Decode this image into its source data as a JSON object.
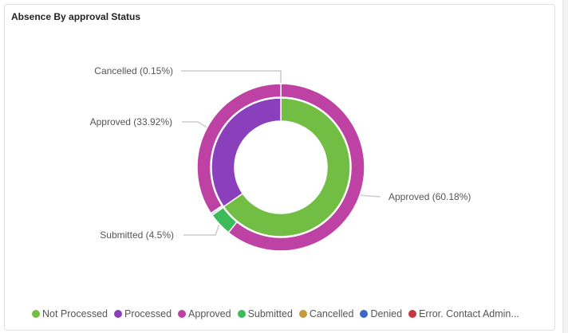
{
  "title": "Absence By approval Status",
  "chart_data": {
    "type": "pie",
    "subtype": "nested-donut",
    "title": "Absence By approval Status",
    "legend_position": "bottom",
    "legend": [
      {
        "name": "Not Processed",
        "color": "#72be44"
      },
      {
        "name": "Processed",
        "color": "#8a3fbd"
      },
      {
        "name": "Approved",
        "color": "#bd42a3"
      },
      {
        "name": "Submitted",
        "color": "#3dbb5a"
      },
      {
        "name": "Cancelled",
        "color": "#c49a3c"
      },
      {
        "name": "Denied",
        "color": "#3a68c4"
      },
      {
        "name": "Error. Contact Admin..."
      }
    ],
    "legend_error_color": "#c4383e",
    "inner_ring": [
      {
        "name": "Not Processed",
        "value": 65.4
      },
      {
        "name": "Processed",
        "value": 34.6
      }
    ],
    "outer_ring": [
      {
        "name": "Approved",
        "value": 60.18,
        "label": "Approved (60.18%)"
      },
      {
        "name": "Submitted",
        "value": 4.5,
        "label": "Submitted (4.5%)"
      },
      {
        "name": "Denied",
        "value": 0.3
      },
      {
        "name": "Cancelled",
        "value": 0.15,
        "label": "Cancelled (0.15%)"
      },
      {
        "name": "Approved",
        "value": 33.92,
        "label": "Approved (33.92%)"
      }
    ]
  }
}
